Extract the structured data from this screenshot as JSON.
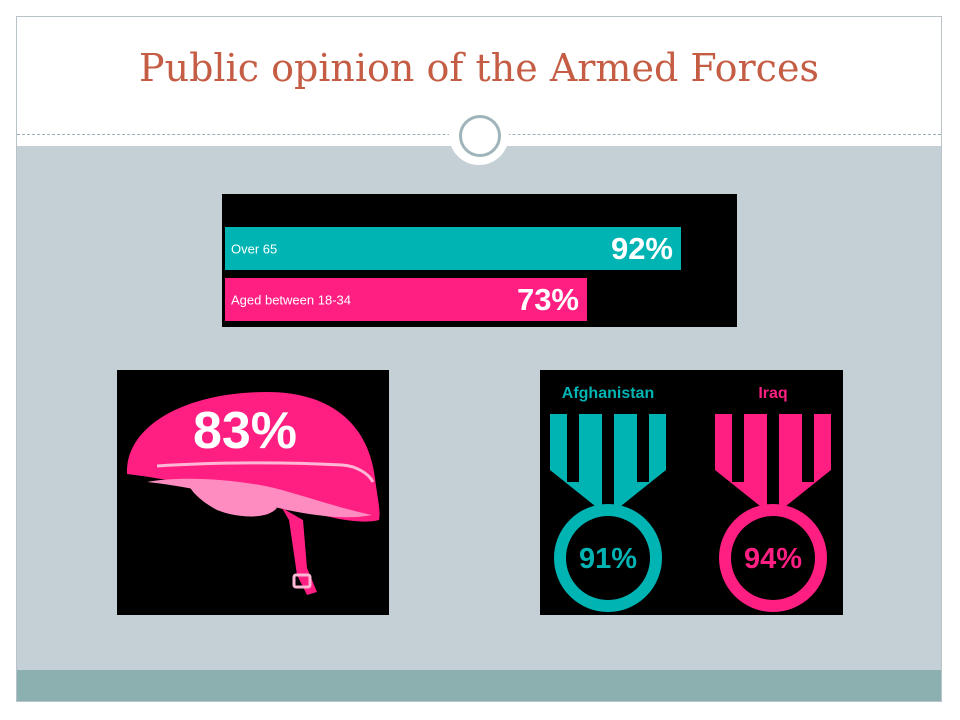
{
  "slide": {
    "title": "Public opinion of the Armed Forces"
  },
  "colors": {
    "title": "#c55d45",
    "teal": "#00b4b4",
    "pink": "#ff1e82",
    "panel_bg": "#000000",
    "content_bg": "#c5d0d6",
    "footer_bg": "#8cafb0"
  },
  "chart_data": [
    {
      "type": "bar",
      "orientation": "horizontal",
      "categories": [
        "Over 65",
        "Aged between 18-34"
      ],
      "values": [
        92,
        73
      ],
      "value_labels": [
        "92%",
        "73%"
      ],
      "colors": [
        "#00b4b4",
        "#ff1e82"
      ],
      "xlim": [
        0,
        100
      ]
    },
    {
      "type": "infographic",
      "icon": "helmet-icon",
      "values": [
        83
      ],
      "value_labels": [
        "83%"
      ],
      "colors": [
        "#ff1e82"
      ]
    },
    {
      "type": "infographic",
      "icon": "medal-icon",
      "categories": [
        "Afghanistan",
        "Iraq"
      ],
      "values": [
        91,
        94
      ],
      "value_labels": [
        "91%",
        "94%"
      ],
      "colors": [
        "#00b4b4",
        "#ff1e82"
      ]
    }
  ]
}
